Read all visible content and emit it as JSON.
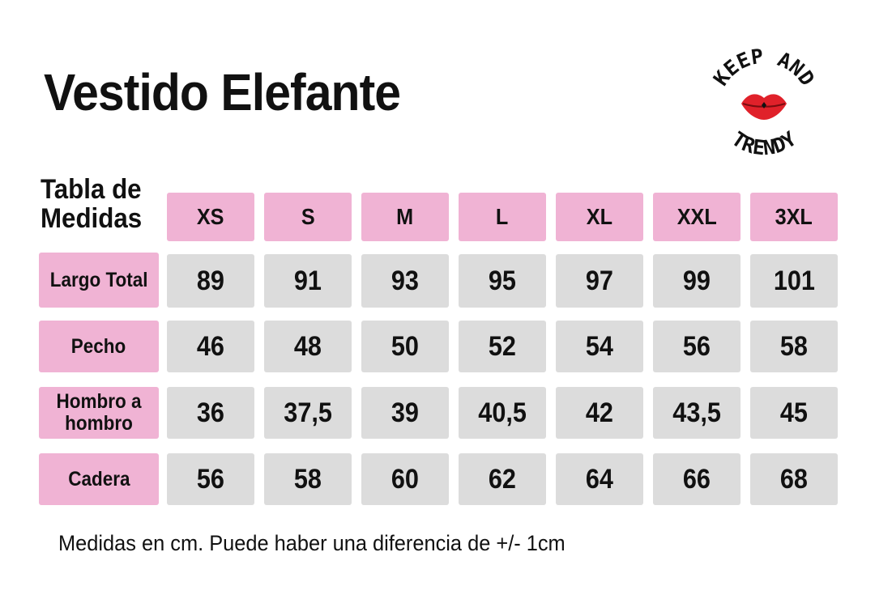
{
  "title": "Vestido Elefante",
  "table": {
    "corner_label_line1": "Tabla de",
    "corner_label_line2": "Medidas",
    "sizes": [
      "XS",
      "S",
      "M",
      "L",
      "XL",
      "XXL",
      "3XL"
    ],
    "rows": [
      {
        "label": "Largo Total",
        "values": [
          "89",
          "91",
          "93",
          "95",
          "97",
          "99",
          "101"
        ]
      },
      {
        "label": "Pecho",
        "values": [
          "46",
          "48",
          "50",
          "52",
          "54",
          "56",
          "58"
        ]
      },
      {
        "label": "Hombro a hombro",
        "values": [
          "36",
          "37,5",
          "39",
          "40,5",
          "42",
          "43,5",
          "45"
        ]
      },
      {
        "label": "Cadera",
        "values": [
          "56",
          "58",
          "60",
          "62",
          "64",
          "66",
          "68"
        ]
      }
    ]
  },
  "footnote": "Medidas en cm. Puede haber una diferencia de +/- 1cm",
  "logo": {
    "text_top": "KEEP AND",
    "text_bottom": "TRENDY",
    "icon": "lips-icon"
  },
  "colors": {
    "header_pink": "#f0b3d4",
    "cell_gray": "#dcdcdc",
    "lips_red": "#e0212a"
  }
}
